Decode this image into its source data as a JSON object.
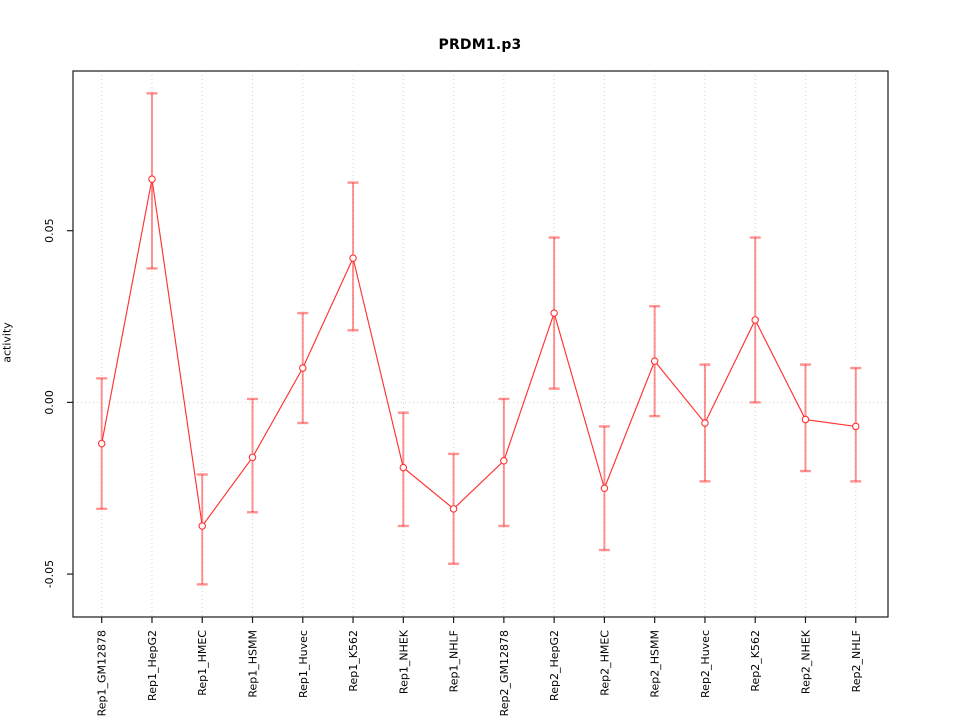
{
  "figure": {
    "title": "PRDM1.p3",
    "y_axis_label": "activity"
  },
  "chart_data": {
    "type": "line",
    "title": "PRDM1.p3",
    "xlabel": "",
    "ylabel": "activity",
    "categories": [
      "Rep1_GM12878",
      "Rep1_HepG2",
      "Rep1_HMEC",
      "Rep1_HSMM",
      "Rep1_Huvec",
      "Rep1_K562",
      "Rep1_NHEK",
      "Rep1_NHLF",
      "Rep2_GM12878",
      "Rep2_HepG2",
      "Rep2_HMEC",
      "Rep2_HSMM",
      "Rep2_Huvec",
      "Rep2_K562",
      "Rep2_NHEK",
      "Rep2_NHLF"
    ],
    "series": [
      {
        "name": "activity",
        "values": [
          -0.012,
          0.065,
          -0.036,
          -0.016,
          0.01,
          0.042,
          -0.019,
          -0.031,
          -0.017,
          0.026,
          -0.025,
          0.012,
          -0.006,
          0.024,
          -0.005,
          -0.007
        ],
        "error_high": [
          0.007,
          0.09,
          -0.021,
          0.001,
          0.026,
          0.064,
          -0.003,
          -0.015,
          0.001,
          0.048,
          -0.007,
          0.028,
          0.011,
          0.048,
          0.011,
          0.01
        ],
        "error_low": [
          -0.031,
          0.039,
          -0.053,
          -0.032,
          -0.006,
          0.021,
          -0.036,
          -0.047,
          -0.036,
          0.004,
          -0.043,
          -0.004,
          -0.023,
          0.0,
          -0.02,
          -0.023
        ]
      }
    ],
    "y_tick_labels": [
      "0.05",
      "0.00",
      "-0.05"
    ],
    "y_tick_values": [
      0.05,
      0.0,
      -0.05
    ],
    "ylim": [
      -0.0625,
      0.0965
    ],
    "reference_line_y": 0.0,
    "grid": {
      "vertical_dotted_per_category": true,
      "horizontal_dotted_at_zero": true
    },
    "legend_position": "none",
    "colors": {
      "series_line": "#ff3333",
      "point_stroke": "#ff3333",
      "error_bar": "rgba(255,40,40,0.5)",
      "grid_line": "#d2d2d2",
      "frame": "#1a1a1a",
      "text": "#000000"
    }
  }
}
